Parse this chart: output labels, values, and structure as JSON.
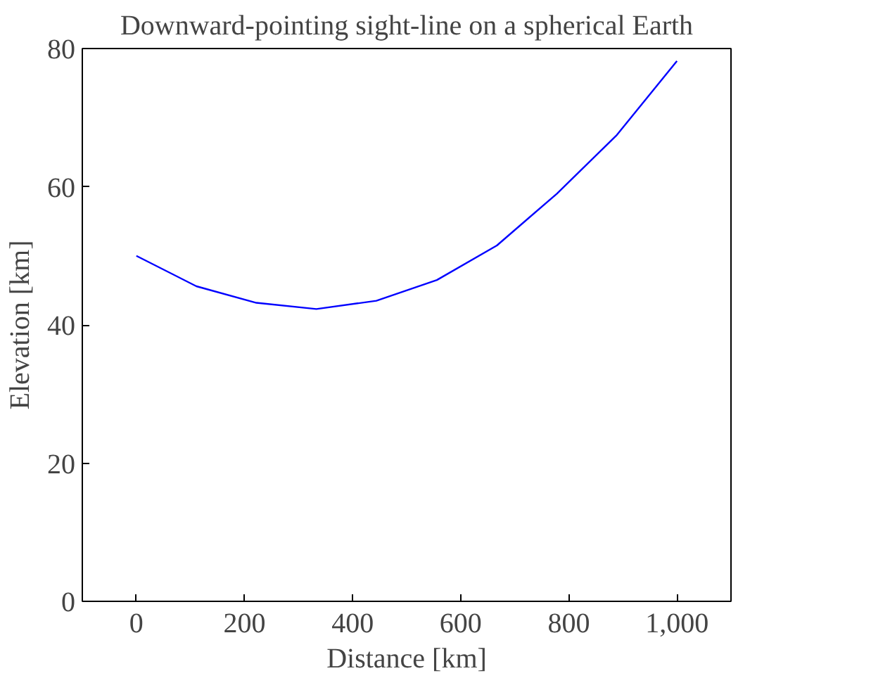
{
  "chart_data": {
    "type": "line",
    "title": "Downward-pointing sight-line on a spherical Earth",
    "xlabel": "Distance [km]",
    "ylabel": "Elevation [km]",
    "x": [
      0,
      111,
      222,
      333,
      444,
      556,
      667,
      778,
      889,
      1000
    ],
    "series": [
      {
        "color": "#0000ff",
        "values": [
          50.0,
          45.6,
          43.2,
          42.3,
          43.5,
          46.5,
          51.5,
          59.0,
          67.5,
          78.2
        ]
      }
    ],
    "xlim": [
      -100,
      1100
    ],
    "ylim": [
      0,
      80
    ],
    "xticks": [
      0,
      200,
      400,
      600,
      800,
      {
        "value": 1000,
        "label": "1,000"
      }
    ],
    "yticks": [
      0,
      20,
      40,
      60,
      80
    ],
    "grid": false,
    "marker": "none",
    "line_style": "solid"
  }
}
